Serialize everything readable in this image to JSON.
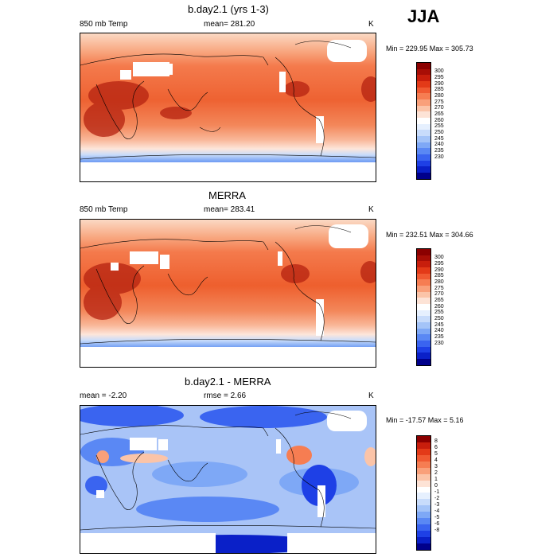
{
  "season": "JJA",
  "palette_temp": [
    "#00008b",
    "#0a20c8",
    "#1e40e6",
    "#3a64f0",
    "#5a88f4",
    "#7ea8f6",
    "#a4c4f8",
    "#c8dcfb",
    "#e6f0fe",
    "#ffffff",
    "#fde3d6",
    "#fbc4a8",
    "#f9a07a",
    "#f67d52",
    "#f05a32",
    "#e33a18",
    "#c81e0c",
    "#a80e06",
    "#8b0000"
  ],
  "palette_diff": [
    "#00008b",
    "#0a20c8",
    "#1e40e6",
    "#3a64f0",
    "#5a88f4",
    "#7ea8f6",
    "#a4c4f8",
    "#c8dcfb",
    "#e6f0fe",
    "#ffffff",
    "#fde3d6",
    "#fbc4a8",
    "#f9a07a",
    "#f67d52",
    "#f05a32",
    "#e33a18",
    "#c81e0c",
    "#8b0000"
  ],
  "panels": [
    {
      "title": "b.day2.1 (yrs 1-3)",
      "left_label": "850 mb Temp",
      "center_label": "mean= 281.20",
      "units": "K",
      "minmax": "Min = 229.95 Max = 305.73",
      "colorbar_labels": [
        "300",
        "295",
        "290",
        "285",
        "280",
        "275",
        "270",
        "265",
        "260",
        "255",
        "250",
        "245",
        "240",
        "235",
        "230"
      ]
    },
    {
      "title": "MERRA",
      "left_label": "850 mb Temp",
      "center_label": "mean= 283.41",
      "units": "K",
      "minmax": "Min = 232.51 Max = 304.66",
      "colorbar_labels": [
        "300",
        "295",
        "290",
        "285",
        "280",
        "275",
        "270",
        "265",
        "260",
        "255",
        "250",
        "245",
        "240",
        "235",
        "230"
      ]
    },
    {
      "title": "b.day2.1 - MERRA",
      "left_label": "mean =  -2.20",
      "center_label": "rmse =  2.66",
      "units": "K",
      "minmax": "Min = -17.57 Max =   5.16",
      "colorbar_labels": [
        "8",
        "6",
        "5",
        "4",
        "3",
        "2",
        "1",
        "0",
        "-1",
        "-2",
        "-3",
        "-4",
        "-5",
        "-6",
        "-8"
      ]
    }
  ]
}
